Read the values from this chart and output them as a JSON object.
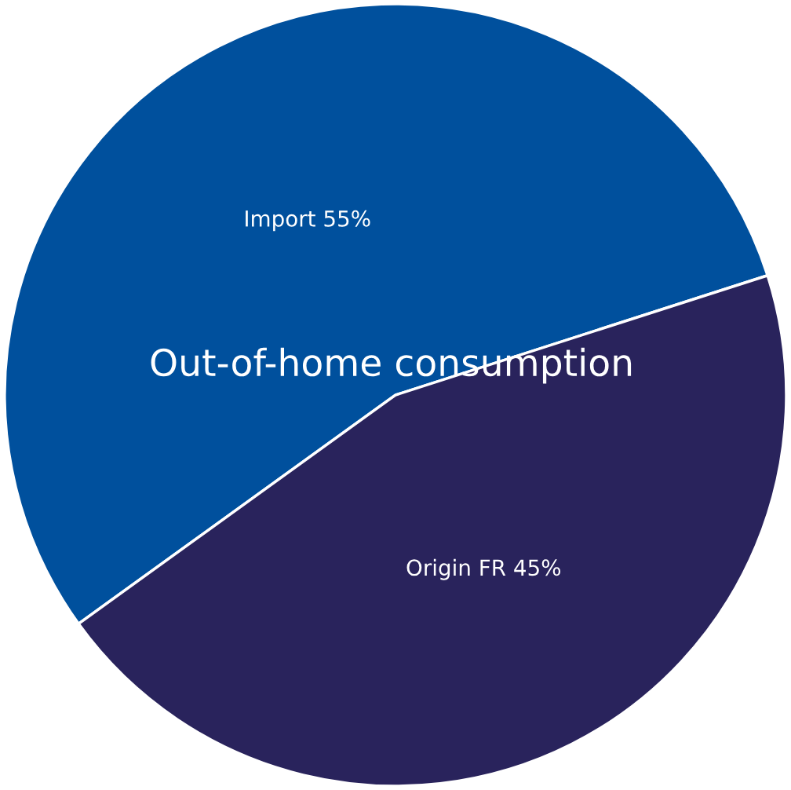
{
  "chart_data": {
    "type": "pie",
    "title": "Out-of-home consumption",
    "categories": [
      "Import",
      "Origin FR"
    ],
    "values": [
      55,
      45
    ],
    "value_labels": [
      "55%",
      "45%"
    ],
    "colors": [
      "#00509d",
      "#29235c"
    ],
    "legend": false
  }
}
